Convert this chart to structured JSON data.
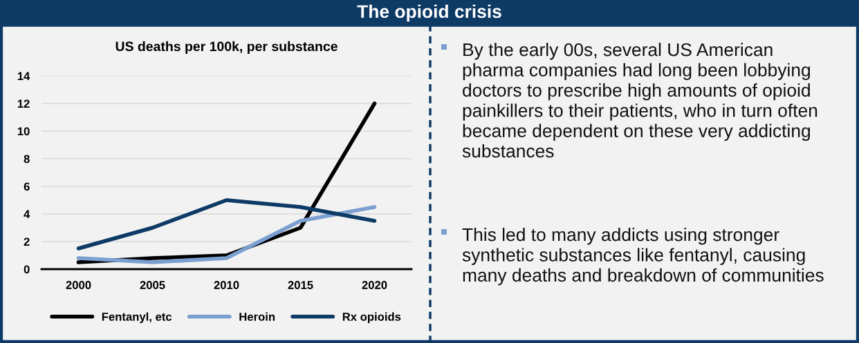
{
  "chart_data": {
    "type": "line",
    "title": "The opioid crisis",
    "subtitle": "US deaths per 100k, per substance",
    "categories": [
      "2000",
      "2005",
      "2010",
      "2015",
      "2020"
    ],
    "series": [
      {
        "name": "Fentanyl, etc",
        "color": "#000000",
        "values": [
          0.5,
          0.8,
          1,
          3,
          12
        ]
      },
      {
        "name": "Heroin",
        "color": "#7b9fd0",
        "values": [
          0.8,
          0.5,
          0.8,
          3.5,
          4.5
        ]
      },
      {
        "name": "Rx opioids",
        "color": "#0e3a66",
        "values": [
          1.5,
          3,
          5,
          4.5,
          3.5
        ]
      }
    ],
    "ylim": [
      0,
      14
    ],
    "yticks": [
      0,
      2,
      4,
      6,
      8,
      10,
      12,
      14
    ],
    "grid": "y",
    "legend": "bottom",
    "marker": "none",
    "line_style": "solid",
    "annotations": [
      "By the early 00s, several US American pharma companies had long been lobbying doctors to prescribe high amounts of opioid painkillers to their patients, who in turn often became dependent on these very addicting substances",
      "This led to many addicts using stronger synthetic substances like fentanyl, causing many deaths and breakdown of communities"
    ]
  }
}
